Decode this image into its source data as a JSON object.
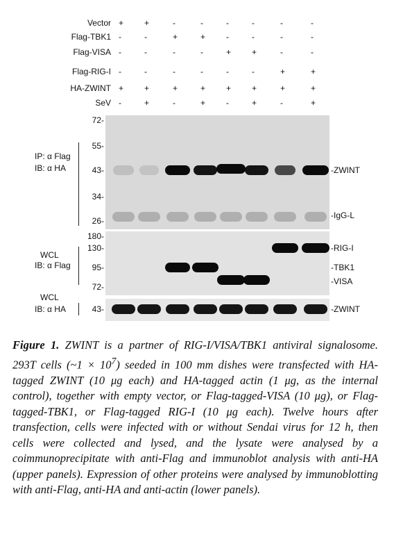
{
  "conditions": [
    {
      "label": "Vector",
      "signs": [
        "+",
        "+",
        "-",
        "-",
        "-",
        "-",
        "-",
        "-"
      ]
    },
    {
      "label": "Flag-TBK1",
      "signs": [
        "-",
        "-",
        "+",
        "+",
        "-",
        "-",
        "-",
        "-"
      ]
    },
    {
      "label": "Flag-VISA",
      "signs": [
        "-",
        "-",
        "-",
        "-",
        "+",
        "+",
        "-",
        "-"
      ]
    },
    {
      "label": "Flag-RIG-I",
      "signs": [
        "-",
        "-",
        "-",
        "-",
        "-",
        "-",
        "+",
        "+"
      ]
    },
    {
      "label": "HA-ZWINT",
      "signs": [
        "+",
        "+",
        "+",
        "+",
        "+",
        "+",
        "+",
        "+"
      ]
    },
    {
      "label": "SeV",
      "signs": [
        "-",
        "+",
        "-",
        "+",
        "-",
        "+",
        "-",
        "+"
      ]
    }
  ],
  "panels": [
    {
      "left_labels": [
        "IP: α Flag",
        "IB: α HA"
      ],
      "markers": [
        "72-",
        "55-",
        "43-",
        "34-",
        "26-"
      ],
      "right_labels": [
        "-ZWINT",
        "-IgG-L"
      ]
    },
    {
      "left_labels": [
        "WCL",
        "IB: α Flag"
      ],
      "markers": [
        "180-",
        "130-",
        "95-",
        "72-"
      ],
      "right_labels": [
        "-RIG-I",
        "-TBK1",
        "-VISA"
      ]
    },
    {
      "left_labels": [
        "WCL",
        "IB: α HA"
      ],
      "markers": [
        "43-"
      ],
      "right_labels": [
        "-ZWINT"
      ]
    }
  ],
  "caption": {
    "label": "Figure 1.",
    "text_before_sup": " ZWINT is a partner of RIG-I/VISA/TBK1 antiviral signalosome. 293T cells (~1 × 10",
    "sup": "7",
    "text_after_sup": ") seeded in 100 mm dishes were transfected with HA-tagged ZWINT (10 μg each) and HA-tagged actin (1 μg, as the internal control), together with empty vector, or Flag-tagged-VISA (10 μg), or Flag-tagged-TBK1, or Flag-tagged RIG-I (10 μg each). Twelve hours after transfection, cells were infected with or without Sendai virus for 12 h, then cells were collected and lysed, and the lysate were analysed by a coimmunoprecipitate with anti-Flag and immunoblot analysis with anti-HA (upper panels). Expression of other proteins were analysed by immunoblotting with anti-Flag, anti-HA and anti-actin (lower panels)."
  }
}
